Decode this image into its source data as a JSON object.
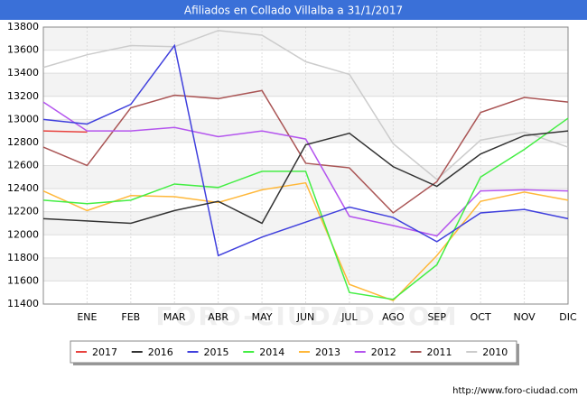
{
  "chart_data": {
    "type": "line",
    "title": "Afiliados en Collado Villalba a 31/1/2017",
    "watermark": "FORO-CIUDAD.COM",
    "source": "http://www.foro-ciudad.com",
    "categories": [
      null,
      "ENE",
      "FEB",
      "MAR",
      "ABR",
      "MAY",
      "JUN",
      "JUL",
      "AGO",
      "SEP",
      "OCT",
      "NOV",
      "DIC"
    ],
    "ylim": [
      11400,
      13800
    ],
    "yticks": [
      11400,
      11600,
      11800,
      12000,
      12200,
      12400,
      12600,
      12800,
      13000,
      13200,
      13400,
      13600,
      13800
    ],
    "grid": true,
    "legend": "bottom",
    "series": [
      {
        "name": "2017",
        "color": "#e8433f",
        "values": [
          12900,
          12890,
          null,
          null,
          null,
          null,
          null,
          null,
          null,
          null,
          null,
          null,
          null
        ]
      },
      {
        "name": "2016",
        "color": "#333333",
        "values": [
          12140,
          12120,
          12100,
          12210,
          12290,
          12100,
          12780,
          12880,
          12590,
          12420,
          12700,
          12860,
          12900
        ]
      },
      {
        "name": "2015",
        "color": "#4040dd",
        "values": [
          13000,
          12960,
          13130,
          13640,
          11820,
          11980,
          12110,
          12240,
          12150,
          11940,
          12190,
          12220,
          12140
        ]
      },
      {
        "name": "2014",
        "color": "#44ee44",
        "values": [
          12300,
          12270,
          12300,
          12440,
          12410,
          12550,
          12550,
          11500,
          11440,
          11740,
          12500,
          12740,
          13010
        ]
      },
      {
        "name": "2013",
        "color": "#ffb83a",
        "values": [
          12380,
          12210,
          12340,
          12330,
          12280,
          12390,
          12450,
          11570,
          11430,
          11820,
          12290,
          12370,
          12300
        ]
      },
      {
        "name": "2012",
        "color": "#b455ee",
        "values": [
          13150,
          12900,
          12900,
          12930,
          12850,
          12900,
          12830,
          12160,
          12080,
          11990,
          12380,
          12390,
          12380
        ]
      },
      {
        "name": "2011",
        "color": "#aa5555",
        "values": [
          12760,
          12600,
          13100,
          13210,
          13180,
          13250,
          12620,
          12580,
          12190,
          12460,
          13060,
          13190,
          13150
        ]
      },
      {
        "name": "2010",
        "color": "#cccccc",
        "values": [
          13450,
          13560,
          13640,
          13630,
          13770,
          13730,
          13500,
          13390,
          12790,
          12480,
          12820,
          12890,
          12760
        ]
      }
    ]
  }
}
